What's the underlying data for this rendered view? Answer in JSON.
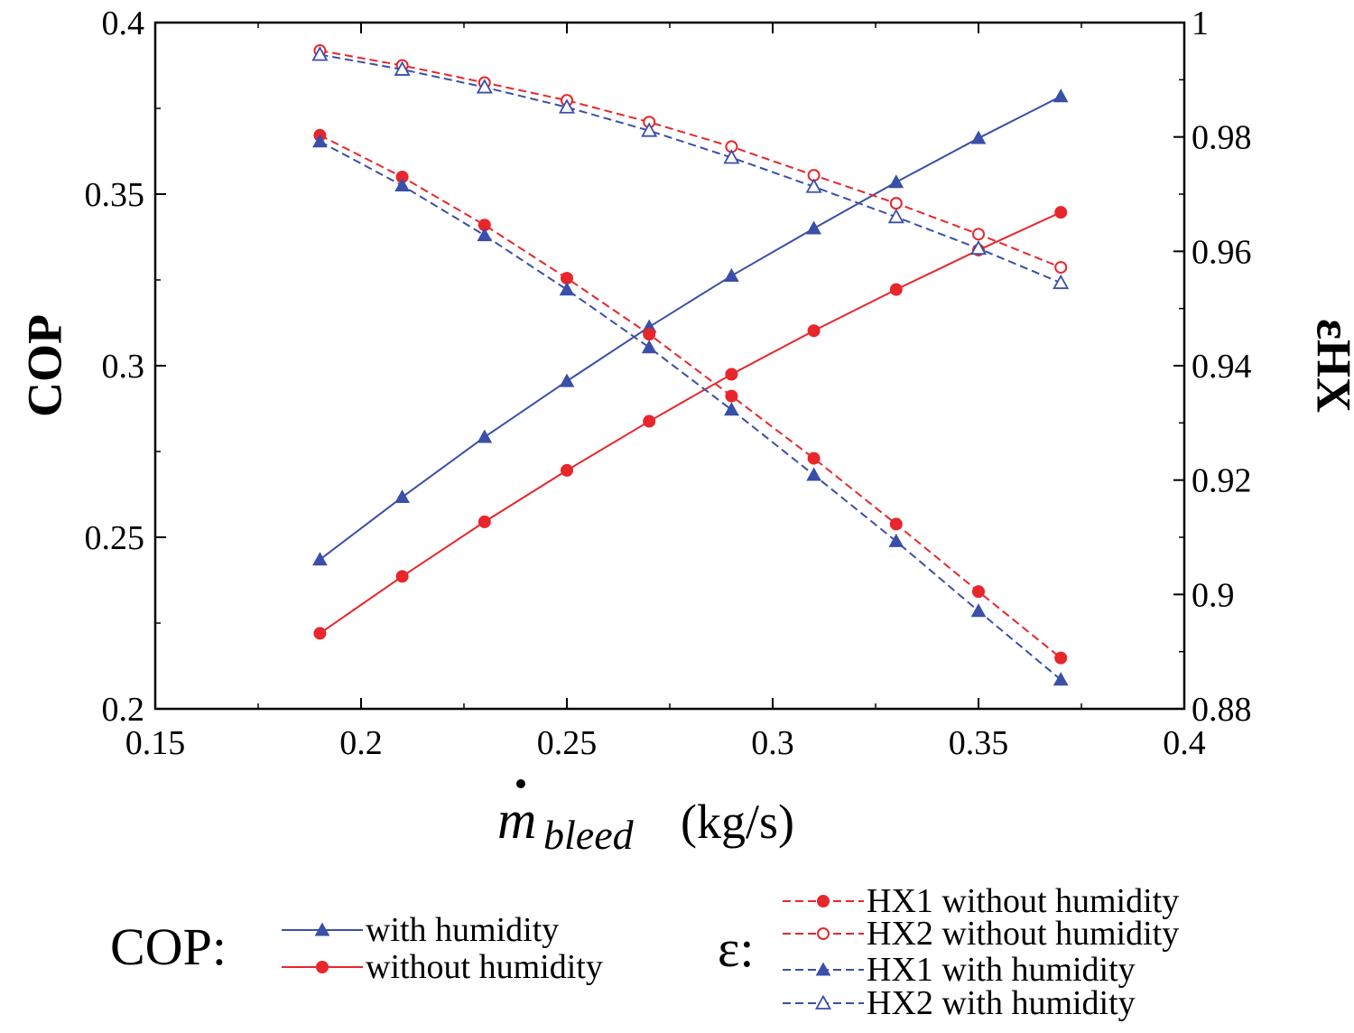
{
  "chart_data": {
    "type": "line",
    "x": [
      0.19,
      0.21,
      0.23,
      0.25,
      0.27,
      0.29,
      0.31,
      0.33,
      0.35,
      0.37
    ],
    "xlim": [
      0.15,
      0.4
    ],
    "ylim_left": [
      0.2,
      0.4
    ],
    "ylim_right": [
      0.88,
      1.0
    ],
    "xlabel": {
      "symbol": "m",
      "subscript": "bleed",
      "unit": "(kg/s)"
    },
    "ylabel_left": "COP",
    "ylabel_right": "εHX",
    "x_ticks": [
      "0.15",
      "0.2",
      "0.25",
      "0.3",
      "0.35",
      "0.4"
    ],
    "y_left_ticks": [
      "0.2",
      "0.25",
      "0.3",
      "0.35",
      "0.4"
    ],
    "y_right_ticks": [
      "0.88",
      "0.9",
      "0.92",
      "0.94",
      "0.96",
      "0.98",
      "1"
    ],
    "grid": false,
    "legend_position": "bottom",
    "legend_groups": [
      {
        "title": "COP:",
        "entries": [
          "with humidity",
          "without humidity"
        ]
      },
      {
        "title": "ε:",
        "entries": [
          "HX1 without humidity",
          "HX2 without humidity",
          "HX1 with humidity",
          "HX2 with humidity"
        ]
      }
    ],
    "series": [
      {
        "name": "with humidity",
        "group": "COP",
        "axis": "left",
        "color": "#3a4fa8",
        "marker": "triangle-filled",
        "dash": false,
        "values": [
          0.2435,
          0.2617,
          0.2792,
          0.2955,
          0.3113,
          0.3262,
          0.34,
          0.3535,
          0.3663,
          0.3785
        ]
      },
      {
        "name": "without humidity",
        "group": "COP",
        "axis": "left",
        "color": "#e8262b",
        "marker": "circle-filled",
        "dash": false,
        "values": [
          0.222,
          0.2386,
          0.2545,
          0.2695,
          0.2838,
          0.2975,
          0.3102,
          0.3222,
          0.3337,
          0.3447
        ]
      },
      {
        "name": "HX1 without humidity",
        "group": "ε",
        "axis": "right",
        "color": "#e8262b",
        "marker": "circle-filled",
        "dash": true,
        "values": [
          0.9803,
          0.973,
          0.9646,
          0.9553,
          0.9455,
          0.9347,
          0.9238,
          0.9123,
          0.9005,
          0.8889
        ]
      },
      {
        "name": "HX2 without humidity",
        "group": "ε",
        "axis": "right",
        "color": "#e8262b",
        "marker": "circle-open",
        "dash": true,
        "values": [
          0.9951,
          0.9925,
          0.9895,
          0.9864,
          0.9826,
          0.9783,
          0.9733,
          0.9684,
          0.963,
          0.9572
        ]
      },
      {
        "name": "HX1 with humidity",
        "group": "ε",
        "axis": "right",
        "color": "#3a4fa8",
        "marker": "triangle-filled",
        "dash": true,
        "values": [
          0.9792,
          0.9715,
          0.9628,
          0.9533,
          0.9432,
          0.9323,
          0.9209,
          0.9093,
          0.8971,
          0.8851
        ]
      },
      {
        "name": "HX2 with humidity",
        "group": "ε",
        "axis": "right",
        "color": "#3a4fa8",
        "marker": "triangle-open",
        "dash": true,
        "values": [
          0.9944,
          0.9918,
          0.9887,
          0.9852,
          0.9811,
          0.9764,
          0.9713,
          0.966,
          0.9605,
          0.9545
        ]
      }
    ]
  }
}
